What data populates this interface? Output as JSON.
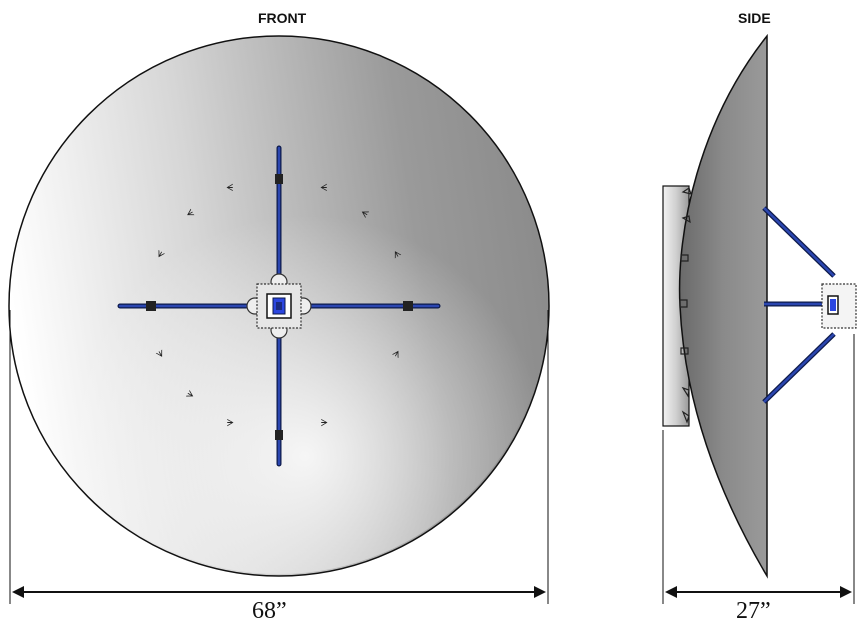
{
  "views": {
    "front_label": "FRONT",
    "side_label": "SIDE"
  },
  "dimensions": {
    "width": "68”",
    "depth": "27”"
  }
}
